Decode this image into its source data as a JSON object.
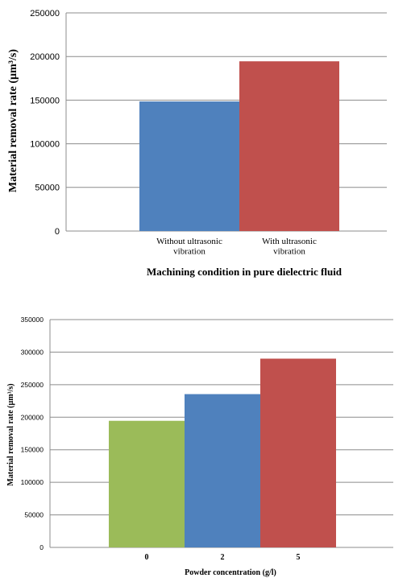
{
  "chart_data": [
    {
      "type": "bar",
      "title": "",
      "xlabel": "Machining condition in pure dielectric fluid",
      "ylabel": "Material removal rate (µm³/s)",
      "ylim": [
        0,
        250000
      ],
      "yticks": [
        "0",
        "50000",
        "100000",
        "150000",
        "200000",
        "250000"
      ],
      "categories": [
        [
          "Without ultrasonic",
          "vibration"
        ],
        [
          "With ultrasonic",
          "vibration"
        ]
      ],
      "values": [
        148500,
        194500
      ],
      "colors": [
        "#4f81bd",
        "#c0504d"
      ],
      "grid": true,
      "legend": "none"
    },
    {
      "type": "bar",
      "title": "",
      "xlabel": "Powder concentration (g/l)",
      "ylabel": "Material removal rate (µm³/s)",
      "ylim": [
        0,
        350000
      ],
      "yticks": [
        "0",
        "50000",
        "100000",
        "150000",
        "200000",
        "250000",
        "300000",
        "350000"
      ],
      "categories": [
        "0",
        "2",
        "5"
      ],
      "values": [
        194500,
        235500,
        290000
      ],
      "colors": [
        "#9bbb59",
        "#4f81bd",
        "#c0504d"
      ],
      "grid": true,
      "legend": "none"
    }
  ]
}
